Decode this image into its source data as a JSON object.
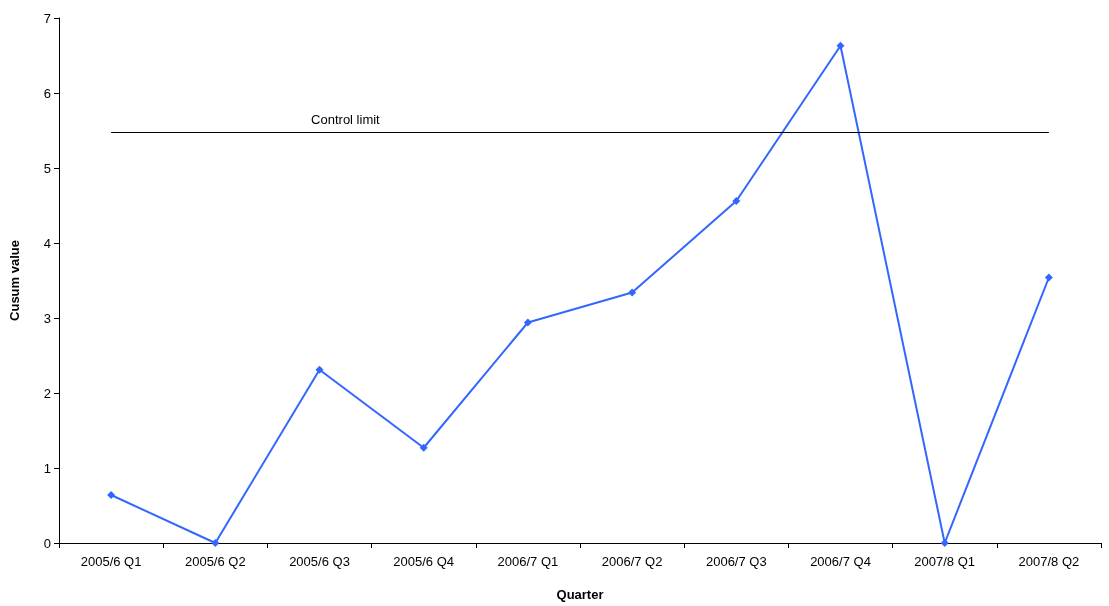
{
  "chart_data": {
    "type": "line",
    "xlabel": "Quarter",
    "ylabel": "Cusum value",
    "categories": [
      "2005/6 Q1",
      "2005/6 Q2",
      "2005/6 Q3",
      "2005/6 Q4",
      "2006/7 Q1",
      "2006/7 Q2",
      "2006/7 Q3",
      "2006/7 Q4",
      "2007/8 Q1",
      "2007/8 Q2"
    ],
    "series": [
      {
        "color": "#3366ff",
        "values": [
          0.64,
          0,
          2.31,
          1.27,
          2.94,
          3.34,
          4.56,
          6.63,
          0,
          3.54
        ]
      }
    ],
    "ylim": [
      0,
      7
    ],
    "yticks": [
      0,
      1,
      2,
      3,
      4,
      5,
      6,
      7
    ],
    "ref_lines": [
      {
        "axis": "y",
        "value": 5.48,
        "label": "Control limit",
        "color": "#000000"
      }
    ],
    "marker": "diamond",
    "grid": false
  }
}
